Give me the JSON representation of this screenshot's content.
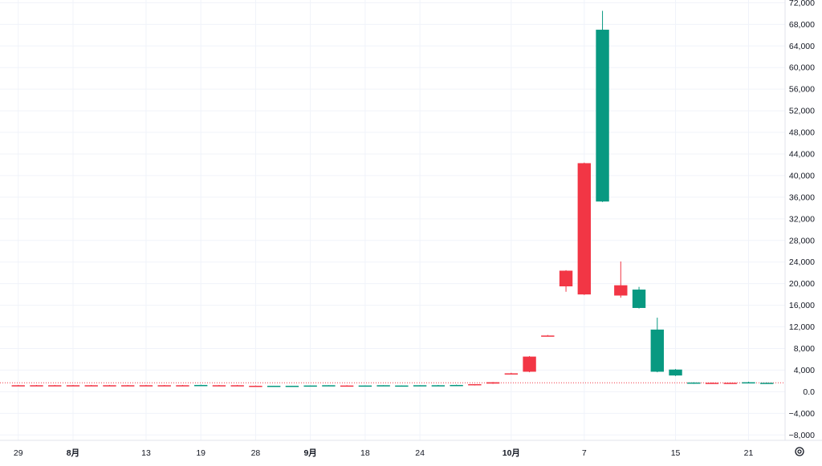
{
  "chart_data": {
    "type": "candlestick",
    "colors": {
      "up": "#089981",
      "down": "#f23645",
      "last_price_line": "#f23645",
      "grid": "#f0f3fa",
      "text": "#131722"
    },
    "y_axis": {
      "ylim": [
        -9000,
        72500
      ],
      "ticks": [
        72000,
        68000,
        64000,
        60000,
        56000,
        52000,
        48000,
        44000,
        40000,
        36000,
        32000,
        28000,
        24000,
        20000,
        16000,
        12000,
        8000,
        4000,
        0,
        -4000,
        -8000
      ],
      "tick_labels": [
        "72,000",
        "68,000",
        "64,000",
        "60,000",
        "56,000",
        "52,000",
        "48,000",
        "44,000",
        "40,000",
        "36,000",
        "32,000",
        "28,000",
        "24,000",
        "20,000",
        "16,000",
        "12,000",
        "8,000",
        "4,000",
        "0.0",
        "−4,000",
        "−8,000"
      ]
    },
    "x_axis": {
      "range": [
        -1,
        42
      ],
      "ticks": [
        {
          "index": 0,
          "label": "29",
          "bold": false
        },
        {
          "index": 3,
          "label": "8月",
          "bold": true
        },
        {
          "index": 7,
          "label": "13",
          "bold": false
        },
        {
          "index": 10,
          "label": "19",
          "bold": false
        },
        {
          "index": 13,
          "label": "28",
          "bold": false
        },
        {
          "index": 16,
          "label": "9月",
          "bold": true
        },
        {
          "index": 19,
          "label": "18",
          "bold": false
        },
        {
          "index": 22,
          "label": "24",
          "bold": false
        },
        {
          "index": 27,
          "label": "10月",
          "bold": true
        },
        {
          "index": 31,
          "label": "7",
          "bold": false
        },
        {
          "index": 36,
          "label": "15",
          "bold": false
        },
        {
          "index": 40,
          "label": "21",
          "bold": false
        }
      ]
    },
    "candles": [
      {
        "i": 0,
        "open": 1200,
        "high": 1250,
        "low": 1150,
        "close": 1200,
        "dir": "down"
      },
      {
        "i": 1,
        "open": 1200,
        "high": 1250,
        "low": 1150,
        "close": 1200,
        "dir": "down"
      },
      {
        "i": 2,
        "open": 1200,
        "high": 1250,
        "low": 1150,
        "close": 1200,
        "dir": "down"
      },
      {
        "i": 3,
        "open": 1200,
        "high": 1250,
        "low": 1150,
        "close": 1200,
        "dir": "down"
      },
      {
        "i": 4,
        "open": 1200,
        "high": 1250,
        "low": 1150,
        "close": 1200,
        "dir": "down"
      },
      {
        "i": 5,
        "open": 1200,
        "high": 1250,
        "low": 1150,
        "close": 1200,
        "dir": "down"
      },
      {
        "i": 6,
        "open": 1200,
        "high": 1250,
        "low": 1150,
        "close": 1200,
        "dir": "down"
      },
      {
        "i": 7,
        "open": 1200,
        "high": 1250,
        "low": 1150,
        "close": 1200,
        "dir": "down"
      },
      {
        "i": 8,
        "open": 1200,
        "high": 1250,
        "low": 1150,
        "close": 1200,
        "dir": "down"
      },
      {
        "i": 9,
        "open": 1200,
        "high": 1250,
        "low": 1150,
        "close": 1200,
        "dir": "down"
      },
      {
        "i": 10,
        "open": 1200,
        "high": 1300,
        "low": 1150,
        "close": 1250,
        "dir": "up"
      },
      {
        "i": 11,
        "open": 1200,
        "high": 1250,
        "low": 1150,
        "close": 1200,
        "dir": "down"
      },
      {
        "i": 12,
        "open": 1200,
        "high": 1250,
        "low": 1150,
        "close": 1200,
        "dir": "down"
      },
      {
        "i": 13,
        "open": 1100,
        "high": 1150,
        "low": 1050,
        "close": 1100,
        "dir": "down"
      },
      {
        "i": 14,
        "open": 1050,
        "high": 1100,
        "low": 1000,
        "close": 1100,
        "dir": "up"
      },
      {
        "i": 15,
        "open": 1050,
        "high": 1100,
        "low": 1000,
        "close": 1100,
        "dir": "up"
      },
      {
        "i": 16,
        "open": 1100,
        "high": 1150,
        "low": 1050,
        "close": 1150,
        "dir": "up"
      },
      {
        "i": 17,
        "open": 1150,
        "high": 1200,
        "low": 1100,
        "close": 1200,
        "dir": "up"
      },
      {
        "i": 18,
        "open": 1150,
        "high": 1200,
        "low": 1100,
        "close": 1100,
        "dir": "down"
      },
      {
        "i": 19,
        "open": 1100,
        "high": 1150,
        "low": 1050,
        "close": 1150,
        "dir": "up"
      },
      {
        "i": 20,
        "open": 1150,
        "high": 1200,
        "low": 1100,
        "close": 1200,
        "dir": "up"
      },
      {
        "i": 21,
        "open": 1100,
        "high": 1150,
        "low": 1050,
        "close": 1150,
        "dir": "up"
      },
      {
        "i": 22,
        "open": 1150,
        "high": 1200,
        "low": 1100,
        "close": 1200,
        "dir": "up"
      },
      {
        "i": 23,
        "open": 1150,
        "high": 1250,
        "low": 1100,
        "close": 1200,
        "dir": "up"
      },
      {
        "i": 24,
        "open": 1200,
        "high": 1300,
        "low": 1150,
        "close": 1250,
        "dir": "up"
      },
      {
        "i": 25,
        "open": 1200,
        "high": 1400,
        "low": 1150,
        "close": 1400,
        "dir": "down"
      },
      {
        "i": 26,
        "open": 1500,
        "high": 1800,
        "low": 1450,
        "close": 1750,
        "dir": "down"
      },
      {
        "i": 27,
        "open": 3400,
        "high": 3500,
        "low": 3300,
        "close": 3400,
        "dir": "down"
      },
      {
        "i": 28,
        "open": 3700,
        "high": 6600,
        "low": 3600,
        "close": 6500,
        "dir": "down"
      },
      {
        "i": 29,
        "open": 10400,
        "high": 10500,
        "low": 10300,
        "close": 10400,
        "dir": "down"
      },
      {
        "i": 30,
        "open": 19500,
        "high": 22500,
        "low": 18500,
        "close": 22400,
        "dir": "down"
      },
      {
        "i": 31,
        "open": 18000,
        "high": 42400,
        "low": 17900,
        "close": 42300,
        "dir": "down"
      },
      {
        "i": 32,
        "open": 67000,
        "high": 70500,
        "low": 35100,
        "close": 35200,
        "dir": "up"
      },
      {
        "i": 33,
        "open": 17800,
        "high": 24100,
        "low": 17400,
        "close": 19700,
        "dir": "down"
      },
      {
        "i": 34,
        "open": 18900,
        "high": 19400,
        "low": 15400,
        "close": 15500,
        "dir": "up"
      },
      {
        "i": 35,
        "open": 11500,
        "high": 13700,
        "low": 3600,
        "close": 3700,
        "dir": "up"
      },
      {
        "i": 36,
        "open": 4100,
        "high": 4200,
        "low": 2900,
        "close": 3000,
        "dir": "up"
      },
      {
        "i": 37,
        "open": 1700,
        "high": 1750,
        "low": 1450,
        "close": 1500,
        "dir": "up"
      },
      {
        "i": 38,
        "open": 1650,
        "high": 1700,
        "low": 1550,
        "close": 1650,
        "dir": "down"
      },
      {
        "i": 39,
        "open": 1650,
        "high": 1700,
        "low": 1550,
        "close": 1650,
        "dir": "down"
      },
      {
        "i": 40,
        "open": 1750,
        "high": 1850,
        "low": 1650,
        "close": 1700,
        "dir": "up"
      },
      {
        "i": 41,
        "open": 1650,
        "high": 1700,
        "low": 1600,
        "close": 1650,
        "dir": "up"
      }
    ],
    "last_price": 1650,
    "grid": true,
    "settings_icon": "gear-icon"
  }
}
